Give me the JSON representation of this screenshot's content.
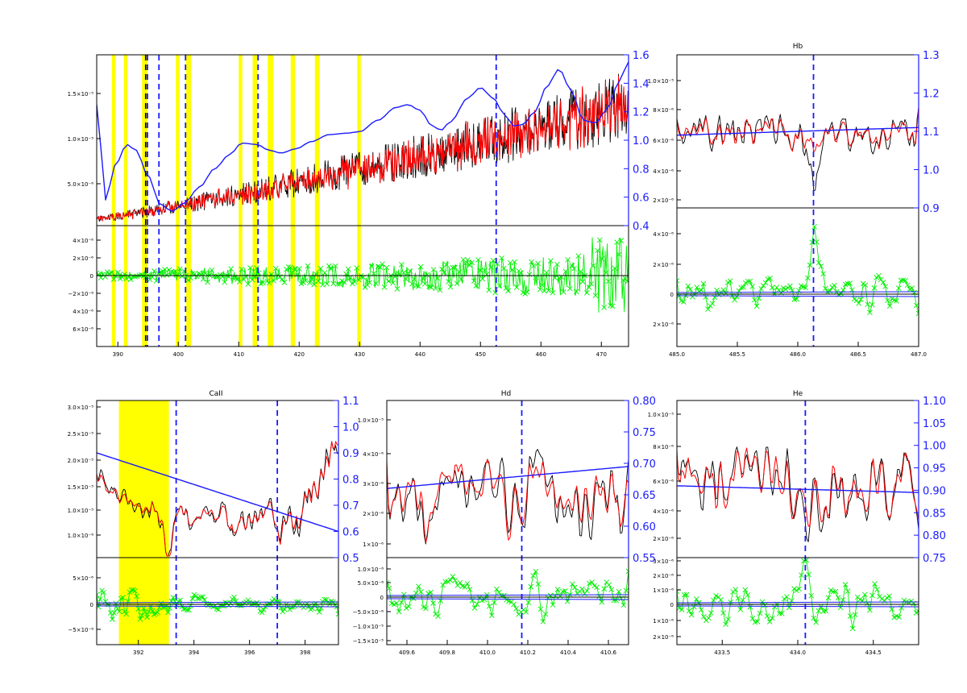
{
  "colors": {
    "model": "#ff0000",
    "observed": "#000000",
    "continuum": "#1a1aff",
    "residual": "#00ee00",
    "mask": "#ffff00",
    "marker": "#1a1aff",
    "axis": "#000000"
  },
  "chart_data": [
    {
      "id": "full",
      "type": "line",
      "title": "",
      "x_ticks": [
        "390",
        "400",
        "410",
        "420",
        "430",
        "440",
        "450",
        "460",
        "470"
      ],
      "xlim": [
        386.5,
        474.5
      ],
      "left_ticks": [
        "5.0×10⁻⁶",
        "1.0×10⁻⁵",
        "1.5×10⁻⁵"
      ],
      "right_ticks": [
        "0.4",
        "0.6",
        "0.8",
        "1.0",
        "1.2",
        "1.4",
        "1.6"
      ],
      "right_ylim": [
        0.4,
        1.6
      ],
      "resid_ticks": [
        "4×10⁻⁶",
        "2×10⁻⁶",
        "0",
        "−2×10⁻⁶",
        "4×10⁻⁶",
        "6×10⁻⁶"
      ],
      "masks": [
        [
          389.0,
          389.6
        ],
        [
          391.0,
          391.6
        ],
        [
          394.0,
          394.9
        ],
        [
          399.6,
          400.2
        ],
        [
          401.3,
          402.1
        ],
        [
          410.0,
          410.6
        ],
        [
          412.3,
          413.1
        ],
        [
          414.8,
          415.7
        ],
        [
          418.6,
          419.3
        ],
        [
          422.6,
          423.4
        ],
        [
          429.6,
          430.2
        ]
      ],
      "markers": [
        394.9,
        396.8,
        401.2,
        413.2,
        452.6
      ],
      "continuum_nodes": [
        [
          386.5,
          1.25
        ],
        [
          388,
          0.58
        ],
        [
          389.5,
          0.82
        ],
        [
          391.5,
          0.97
        ],
        [
          393,
          0.93
        ],
        [
          395,
          0.75
        ],
        [
          397,
          0.55
        ],
        [
          399,
          0.5
        ],
        [
          401,
          0.56
        ],
        [
          403.5,
          0.67
        ],
        [
          406,
          0.8
        ],
        [
          408.5,
          0.9
        ],
        [
          410.5,
          0.98
        ],
        [
          413,
          0.97
        ],
        [
          415,
          0.93
        ],
        [
          417,
          0.91
        ],
        [
          419.5,
          0.94
        ],
        [
          422,
          0.99
        ],
        [
          425,
          1.04
        ],
        [
          428,
          1.05
        ],
        [
          430,
          1.06
        ],
        [
          433,
          1.14
        ],
        [
          436,
          1.23
        ],
        [
          438,
          1.25
        ],
        [
          440,
          1.21
        ],
        [
          442,
          1.1
        ],
        [
          443.5,
          1.07
        ],
        [
          445,
          1.13
        ],
        [
          448,
          1.3
        ],
        [
          450,
          1.37
        ],
        [
          452,
          1.3
        ],
        [
          454,
          1.18
        ],
        [
          455.5,
          1.1
        ],
        [
          457,
          1.11
        ],
        [
          459,
          1.2
        ],
        [
          461,
          1.38
        ],
        [
          463,
          1.5
        ],
        [
          465,
          1.35
        ],
        [
          467,
          1.14
        ],
        [
          469,
          1.12
        ],
        [
          471,
          1.22
        ],
        [
          473,
          1.42
        ],
        [
          474.5,
          1.55
        ]
      ]
    },
    {
      "id": "hb",
      "type": "line",
      "title": "Hb",
      "x_ticks": [
        "485.0",
        "485.5",
        "486.0",
        "486.5",
        "487.0"
      ],
      "xlim": [
        485.0,
        487.0
      ],
      "left_ticks": [
        "2×10⁻⁶",
        "4×10⁻⁶",
        "6×10⁻⁶",
        "8×10⁻⁶",
        "1.0×10⁻⁵"
      ],
      "right_ticks": [
        "0.9",
        "1.0",
        "1.1",
        "1.2",
        "1.3"
      ],
      "right_ylim": [
        0.9,
        1.3
      ],
      "resid_ticks": [
        "4×10⁻⁶",
        "2×10⁻⁶",
        "0",
        "2×10⁻⁶"
      ],
      "markers": [
        486.13
      ],
      "continuum_line": [
        [
          485.0,
          1.09
        ],
        [
          487.0,
          1.11
        ]
      ]
    },
    {
      "id": "caii",
      "type": "line",
      "title": "CaII",
      "x_ticks": [
        "392",
        "394",
        "396",
        "398"
      ],
      "xlim": [
        390.5,
        399.2
      ],
      "left_ticks": [
        "1.0×10⁻⁶",
        "1.0×10⁻⁵",
        "1.5×10⁻⁵",
        "2.0×10⁻⁵",
        "2.5×10⁻⁵",
        "3.0×10⁻⁵"
      ],
      "right_ticks": [
        "0.5",
        "0.6",
        "0.7",
        "0.8",
        "0.9",
        "1.0",
        "1.1"
      ],
      "right_ylim": [
        0.5,
        1.1
      ],
      "resid_ticks": [
        "5×10⁻⁶",
        "0",
        "−5×10⁻⁶"
      ],
      "masks": [
        [
          391.3,
          393.1
        ]
      ],
      "markers": [
        393.36,
        397.0
      ],
      "continuum_line": [
        [
          390.5,
          0.9
        ],
        [
          399.2,
          0.6
        ]
      ]
    },
    {
      "id": "hd",
      "type": "line",
      "title": "Hd",
      "x_ticks": [
        "409.6",
        "409.8",
        "410.0",
        "410.2",
        "410.4",
        "410.6"
      ],
      "xlim": [
        409.5,
        410.7
      ],
      "left_ticks": [
        "1×10⁻⁶",
        "2×10⁻⁶",
        "3×10⁻⁶",
        "4×10⁻⁶",
        "1.0×10⁻⁵"
      ],
      "right_ticks": [
        "0.55",
        "0.60",
        "0.65",
        "0.70",
        "0.75",
        "0.80"
      ],
      "right_ylim": [
        0.55,
        0.8
      ],
      "resid_ticks": [
        "1.0×10⁻⁶",
        "5.0×10⁻⁶",
        "0",
        "−5.0×10⁻⁶",
        "−1.0×10⁻⁵",
        "−1.5×10⁻⁵"
      ],
      "markers": [
        410.17
      ],
      "continuum_line": [
        [
          409.5,
          0.66
        ],
        [
          410.7,
          0.695
        ]
      ]
    },
    {
      "id": "he",
      "type": "line",
      "title": "He",
      "x_ticks": [
        "433.5",
        "434.0",
        "434.5"
      ],
      "xlim": [
        433.2,
        434.8
      ],
      "left_ticks": [
        "2×10⁻⁶",
        "4×10⁻⁶",
        "6×10⁻⁶",
        "8×10⁻⁶",
        "1.0×10⁻⁵"
      ],
      "right_ticks": [
        "0.75",
        "0.80",
        "0.85",
        "0.90",
        "0.95",
        "1.00",
        "1.05",
        "1.10"
      ],
      "right_ylim": [
        0.75,
        1.1
      ],
      "resid_ticks": [
        "3×10⁻⁶",
        "2×10⁻⁶",
        "1×10⁻⁶",
        "0",
        "1×10⁻⁶",
        "2×10⁻⁶"
      ],
      "markers": [
        434.05
      ],
      "continuum_line": [
        [
          433.2,
          0.91
        ],
        [
          434.8,
          0.895
        ]
      ]
    }
  ]
}
